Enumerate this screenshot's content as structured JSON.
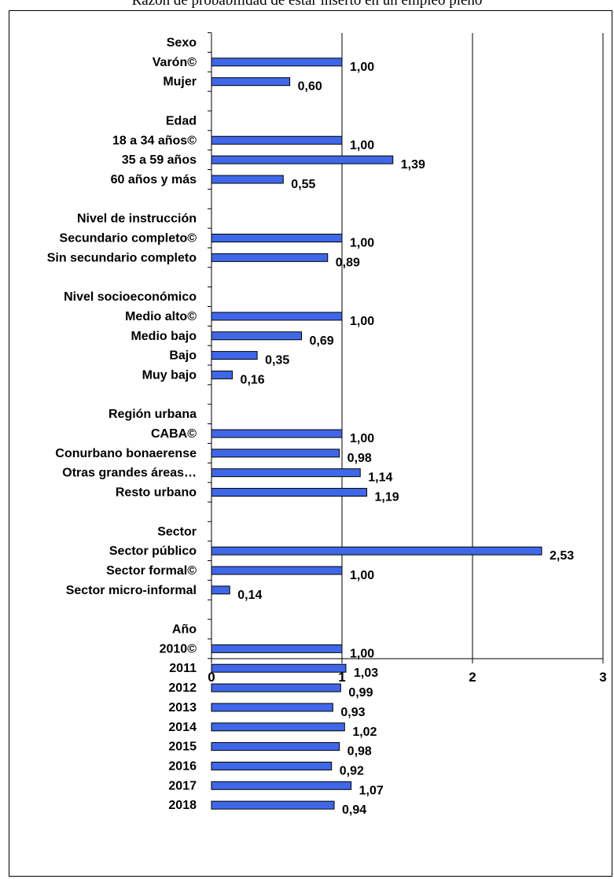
{
  "title": "Razón de probabilidad de estar inserto en un empleo pleno",
  "chart_data": {
    "type": "bar",
    "orientation": "horizontal",
    "title": "Razón de probabilidad de estar inserto en un empleo pleno",
    "xlim": [
      0,
      3
    ],
    "xticks": [
      0,
      1,
      2,
      3
    ],
    "grid": "vertical",
    "bar_color": "#3f67e8",
    "groups": [
      {
        "label": "Sexo",
        "items": [
          {
            "label": "Varón©",
            "value": 1.0,
            "value_label": "1,00"
          },
          {
            "label": "Mujer",
            "value": 0.6,
            "value_label": "0,60"
          }
        ]
      },
      {
        "label": "Edad",
        "items": [
          {
            "label": "18 a 34 años©",
            "value": 1.0,
            "value_label": "1,00"
          },
          {
            "label": "35 a 59 años",
            "value": 1.39,
            "value_label": "1,39"
          },
          {
            "label": "60 años y más",
            "value": 0.55,
            "value_label": "0,55"
          }
        ]
      },
      {
        "label": "Nivel de instrucción",
        "items": [
          {
            "label": "Secundario completo©",
            "value": 1.0,
            "value_label": "1,00"
          },
          {
            "label": "Sin secundario completo",
            "value": 0.89,
            "value_label": "0,89"
          }
        ]
      },
      {
        "label": "Nivel socioeconómico",
        "items": [
          {
            "label": "Medio alto©",
            "value": 1.0,
            "value_label": "1,00"
          },
          {
            "label": "Medio bajo",
            "value": 0.69,
            "value_label": "0,69"
          },
          {
            "label": "Bajo",
            "value": 0.35,
            "value_label": "0,35"
          },
          {
            "label": "Muy bajo",
            "value": 0.16,
            "value_label": "0,16"
          }
        ]
      },
      {
        "label": "Región urbana",
        "items": [
          {
            "label": "CABA©",
            "value": 1.0,
            "value_label": "1,00"
          },
          {
            "label": "Conurbano bonaerense",
            "value": 0.98,
            "value_label": "0,98"
          },
          {
            "label": "Otras grandes áreas…",
            "value": 1.14,
            "value_label": "1,14"
          },
          {
            "label": "Resto urbano",
            "value": 1.19,
            "value_label": "1,19"
          }
        ]
      },
      {
        "label": "Sector",
        "items": [
          {
            "label": "Sector público",
            "value": 2.53,
            "value_label": "2,53"
          },
          {
            "label": "Sector formal©",
            "value": 1.0,
            "value_label": "1,00"
          },
          {
            "label": "Sector micro-informal",
            "value": 0.14,
            "value_label": "0,14"
          }
        ]
      },
      {
        "label": "Año",
        "items": [
          {
            "label": "2010©",
            "value": 1.0,
            "value_label": "1,00"
          },
          {
            "label": "2011",
            "value": 1.03,
            "value_label": "1,03"
          },
          {
            "label": "2012",
            "value": 0.99,
            "value_label": "0,99"
          },
          {
            "label": "2013",
            "value": 0.93,
            "value_label": "0,93"
          },
          {
            "label": "2014",
            "value": 1.02,
            "value_label": "1,02"
          },
          {
            "label": "2015",
            "value": 0.98,
            "value_label": "0,98"
          },
          {
            "label": "2016",
            "value": 0.92,
            "value_label": "0,92"
          },
          {
            "label": "2017",
            "value": 1.07,
            "value_label": "1,07"
          },
          {
            "label": "2018",
            "value": 0.94,
            "value_label": "0,94"
          }
        ]
      }
    ]
  }
}
